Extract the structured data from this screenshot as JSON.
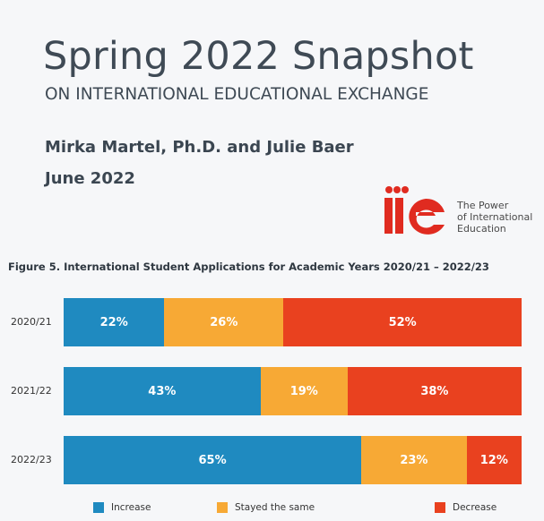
{
  "header": {
    "title": "Spring 2022 Snapshot",
    "subtitle": "ON INTERNATIONAL EDUCATIONAL EXCHANGE",
    "authors": "Mirka Martel, Ph.D. and Julie Baer",
    "date": "June 2022"
  },
  "logo": {
    "text": "iie",
    "tagline": "The Power\nof International\nEducation"
  },
  "chart_data": {
    "type": "bar",
    "orientation": "horizontal",
    "stacked": true,
    "title": "Figure 5. International Student Applications for Academic Years 2020/21 – 2022/23",
    "categories": [
      "2020/21",
      "2021/22",
      "2022/23"
    ],
    "series": [
      {
        "name": "Increase",
        "color": "#1f8ac0",
        "values": [
          22,
          43,
          65
        ]
      },
      {
        "name": "Stayed the same",
        "color": "#f7a935",
        "values": [
          26,
          19,
          23
        ]
      },
      {
        "name": "Decrease",
        "color": "#e9411f",
        "values": [
          52,
          38,
          12
        ]
      }
    ],
    "value_suffix": "%",
    "xlim": [
      0,
      100
    ],
    "legend": "bottom"
  }
}
